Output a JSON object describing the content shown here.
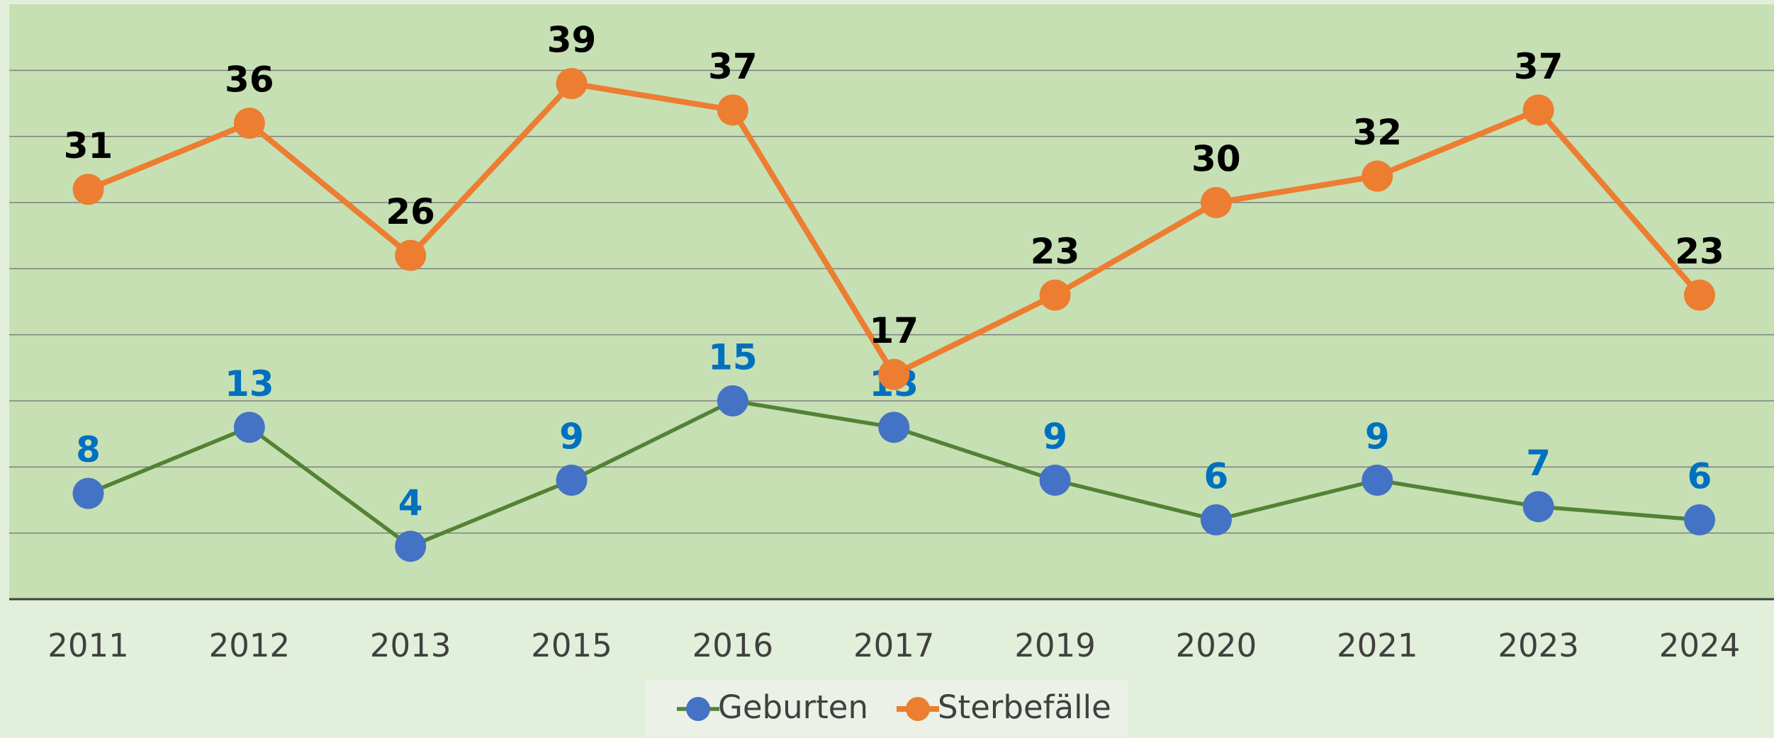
{
  "chart_data": {
    "type": "line",
    "categories": [
      "2011",
      "2012",
      "2013",
      "2015",
      "2016",
      "2017",
      "2019",
      "2020",
      "2021",
      "2023",
      "2024"
    ],
    "series": [
      {
        "name": "Geburten",
        "color": "#548235",
        "marker_color": "#4472c4",
        "label_color": "#0070c0",
        "values": [
          8,
          13,
          4,
          9,
          15,
          13,
          9,
          6,
          9,
          7,
          6
        ]
      },
      {
        "name": "Sterbefälle",
        "color": "#ed7d31",
        "marker_color": "#ed7d31",
        "label_color": "#000000",
        "values": [
          31,
          36,
          26,
          39,
          37,
          17,
          23,
          30,
          32,
          37,
          23
        ]
      }
    ],
    "ylim": [
      0,
      45
    ],
    "yticks": [
      0,
      5,
      10,
      15,
      20,
      25,
      30,
      35,
      40
    ],
    "grid": true,
    "legend": "bottom"
  }
}
